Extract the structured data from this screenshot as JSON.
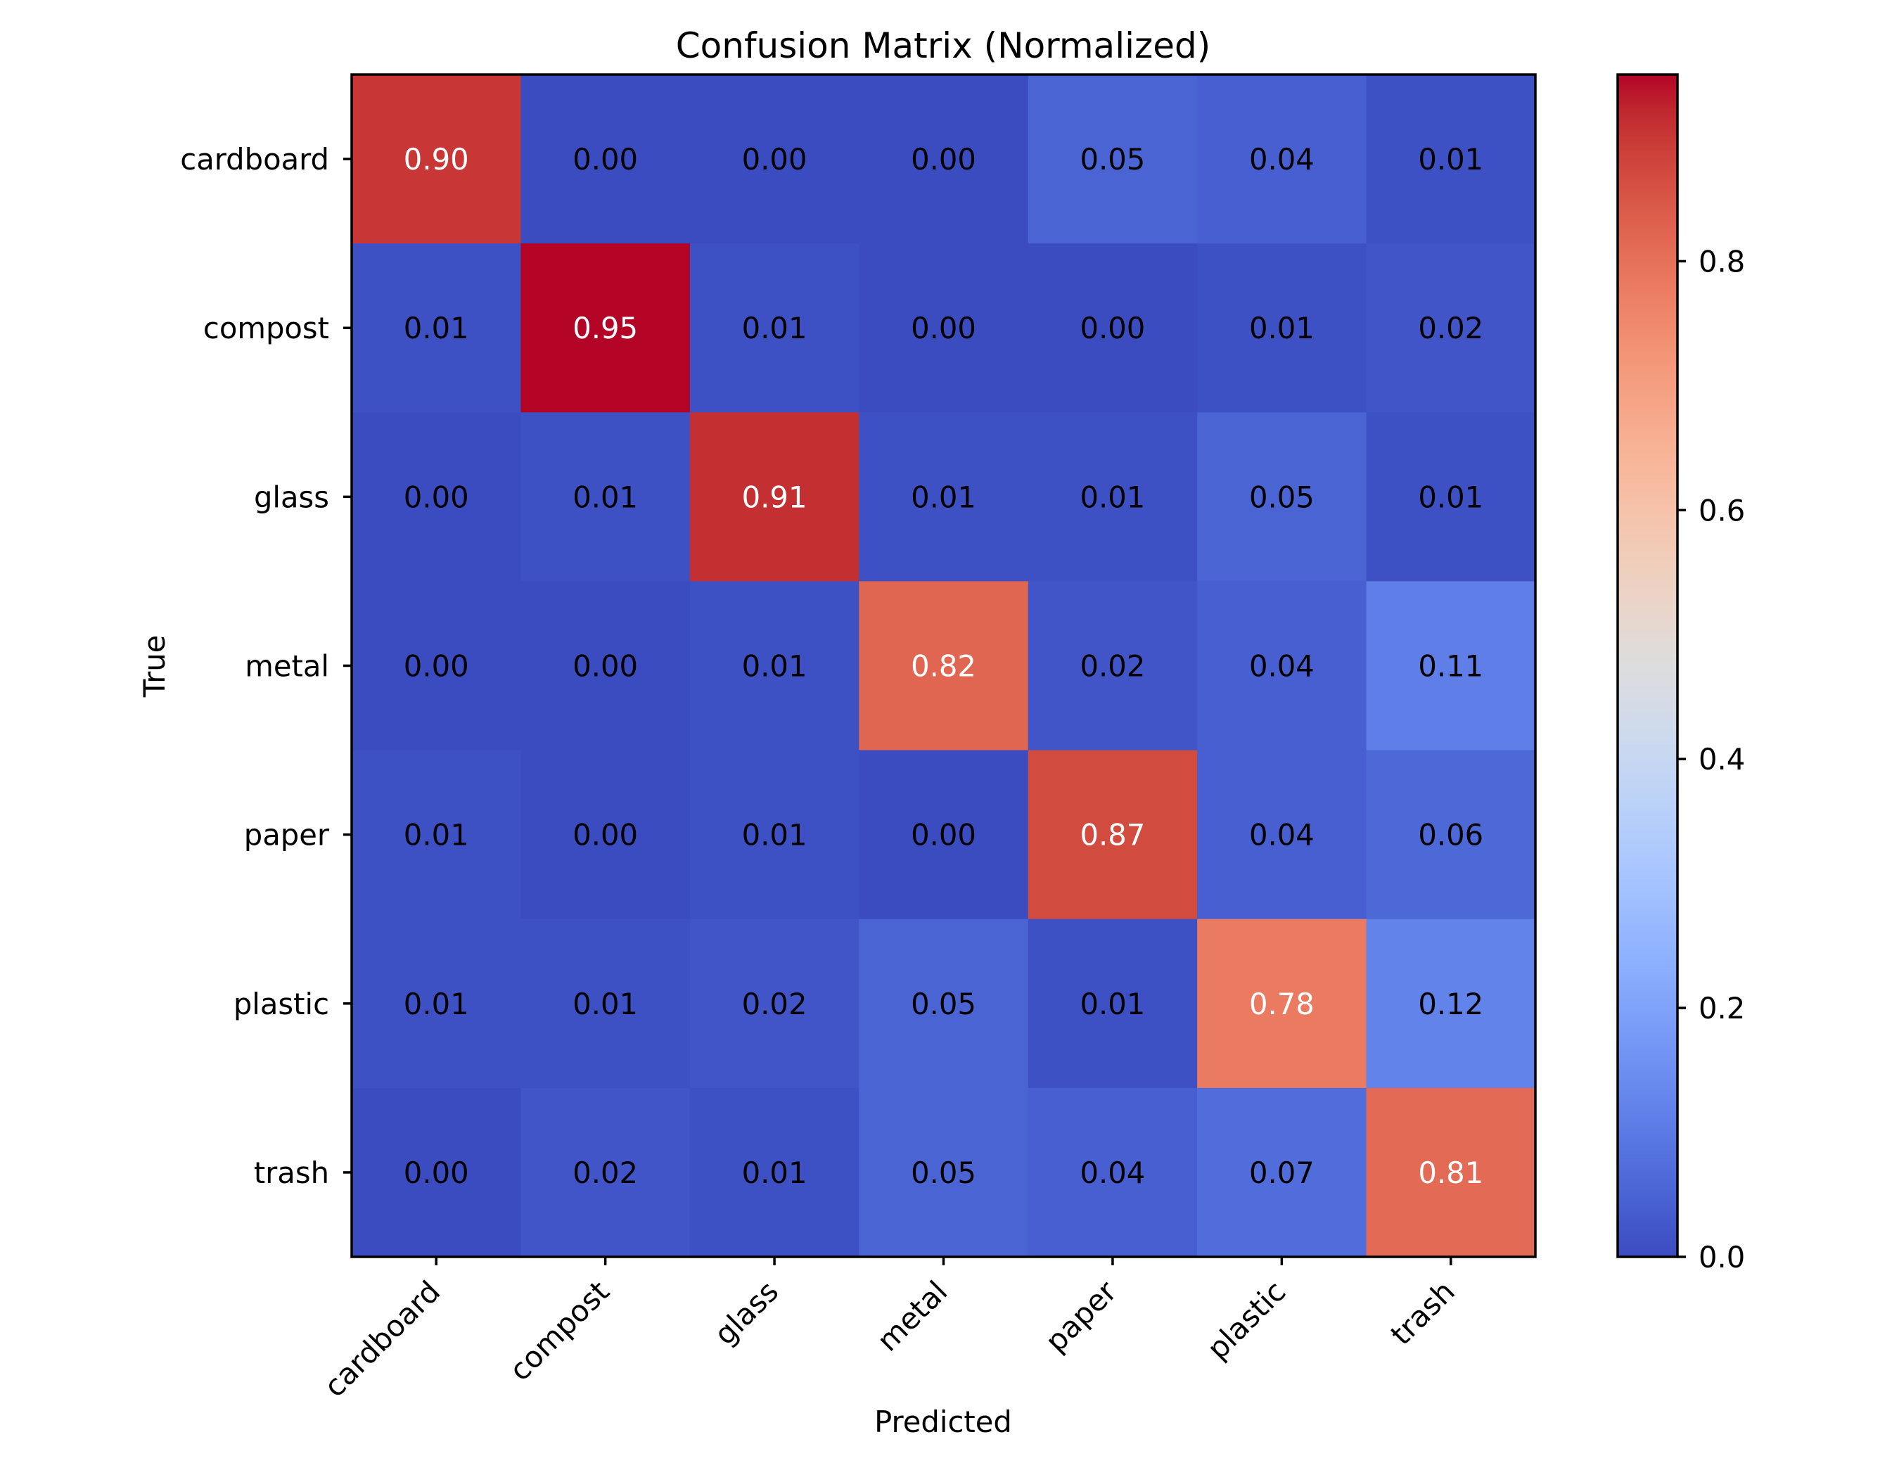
{
  "chart_data": {
    "type": "heatmap",
    "title": "Confusion Matrix (Normalized)",
    "xlabel": "Predicted",
    "ylabel": "True",
    "x_categories": [
      "cardboard",
      "compost",
      "glass",
      "metal",
      "paper",
      "plastic",
      "trash"
    ],
    "y_categories": [
      "cardboard",
      "compost",
      "glass",
      "metal",
      "paper",
      "plastic",
      "trash"
    ],
    "values": [
      [
        0.9,
        0.0,
        0.0,
        0.0,
        0.05,
        0.04,
        0.01
      ],
      [
        0.01,
        0.95,
        0.01,
        0.0,
        0.0,
        0.01,
        0.02
      ],
      [
        0.0,
        0.01,
        0.91,
        0.01,
        0.01,
        0.05,
        0.01
      ],
      [
        0.0,
        0.0,
        0.01,
        0.82,
        0.02,
        0.04,
        0.11
      ],
      [
        0.01,
        0.0,
        0.01,
        0.0,
        0.87,
        0.04,
        0.06
      ],
      [
        0.01,
        0.01,
        0.02,
        0.05,
        0.01,
        0.78,
        0.12
      ],
      [
        0.0,
        0.02,
        0.01,
        0.05,
        0.04,
        0.07,
        0.81
      ]
    ],
    "value_format": "0.00",
    "colormap": "coolwarm",
    "color_range": [
      0.0,
      0.95
    ],
    "colorbar": {
      "ticks": [
        0.0,
        0.2,
        0.4,
        0.6,
        0.8
      ],
      "tick_labels": [
        "0.0",
        "0.2",
        "0.4",
        "0.6",
        "0.8"
      ]
    },
    "text_colors": {
      "dark_cell": "#ffffff",
      "light_cell": "#000000"
    },
    "grid": false,
    "legend": "colorbar-right"
  }
}
